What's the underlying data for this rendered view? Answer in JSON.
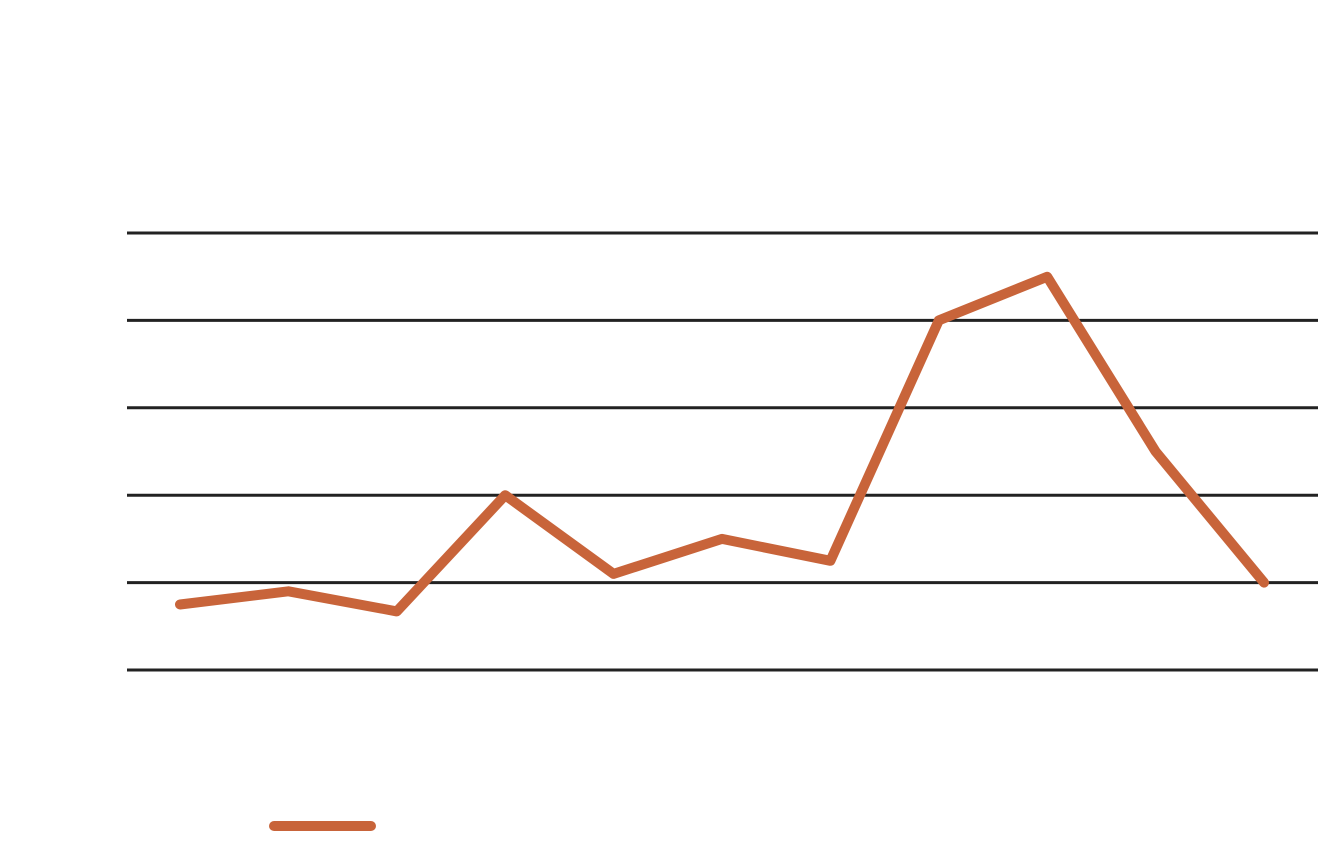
{
  "chart_data": {
    "type": "line",
    "title": "",
    "xlabel": "",
    "ylabel": "",
    "x": [
      1,
      2,
      3,
      4,
      5,
      6,
      7,
      8,
      9,
      10,
      11
    ],
    "ylim": [
      0,
      5
    ],
    "y_gridlines": [
      0,
      1,
      2,
      3,
      4,
      5
    ],
    "grid": true,
    "legend": {
      "position": "bottom-left",
      "entries": [
        ""
      ]
    },
    "series": [
      {
        "color": "#c8643a",
        "values": [
          0.75,
          0.9,
          0.67,
          2.0,
          1.1,
          1.5,
          1.25,
          4.0,
          4.5,
          2.5,
          1.0
        ]
      }
    ],
    "colors": {
      "gridline": "#222222",
      "background": "#ffffff"
    }
  }
}
